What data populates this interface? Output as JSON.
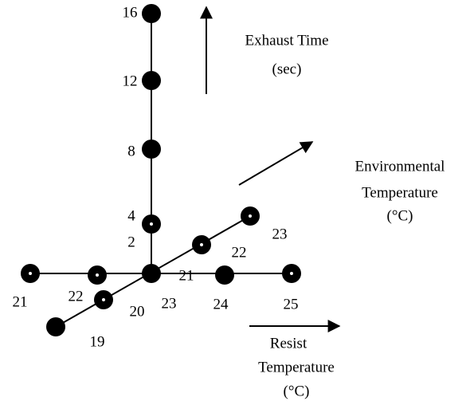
{
  "axes": [
    {
      "title": [
        "Exhaust Time",
        "(sec)"
      ],
      "labels": [
        "16",
        "12",
        "8",
        "4",
        "2"
      ]
    },
    {
      "title": [
        "Environmental",
        "Temperature",
        "(°C)"
      ],
      "labels": [
        "19",
        "20",
        "21",
        "22",
        "23"
      ]
    },
    {
      "title": [
        "Resist",
        "Temperature",
        "(°C)"
      ],
      "labels": [
        "21",
        "22",
        "23",
        "24",
        "25"
      ]
    }
  ]
}
